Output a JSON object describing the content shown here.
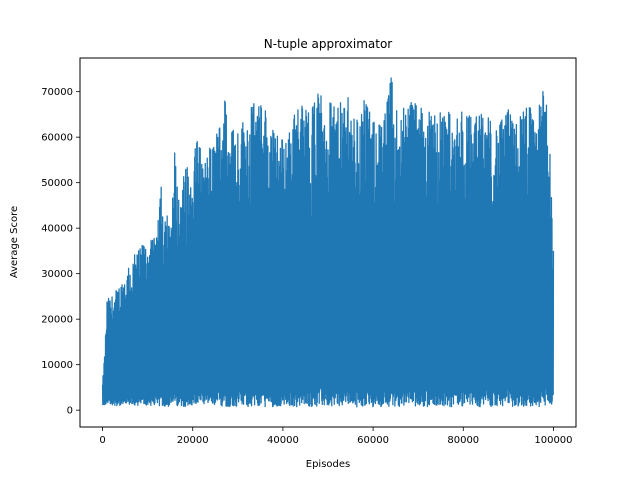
{
  "chart_data": {
    "type": "line",
    "title": "N-tuple approximator",
    "xlabel": "Episodes",
    "ylabel": "Average Score",
    "xlim": [
      -5000,
      105000
    ],
    "ylim": [
      -3700,
      77400
    ],
    "xticks": [
      0,
      20000,
      40000,
      60000,
      80000,
      100000
    ],
    "yticks": [
      0,
      10000,
      20000,
      30000,
      40000,
      50000,
      60000,
      70000
    ],
    "grid": false,
    "legend": "none",
    "series": [
      {
        "color": "#1f77b4",
        "envelope": {
          "x": [
            0,
            500,
            1000,
            2000,
            3000,
            4000,
            5000,
            6000,
            7000,
            8000,
            9000,
            10000,
            11000,
            12000,
            13000,
            14000,
            15000,
            16000,
            17000,
            18000,
            19000,
            20000,
            21000,
            22000,
            23000,
            24000,
            25000,
            26000,
            27000,
            28000,
            30000,
            32000,
            34000,
            36000,
            38000,
            40000,
            42000,
            44000,
            46000,
            48000,
            50000,
            52000,
            54000,
            56000,
            58000,
            60000,
            62000,
            64000,
            66000,
            68000,
            70000,
            72000,
            74000,
            76000,
            78000,
            80000,
            82000,
            84000,
            86000,
            88000,
            90000,
            92000,
            94000,
            96000,
            98000,
            99000,
            100000
          ],
          "upper": [
            6000,
            13000,
            24500,
            25000,
            26500,
            28000,
            30000,
            31500,
            34000,
            35000,
            36500,
            37000,
            37500,
            38000,
            49000,
            44000,
            40000,
            57000,
            46000,
            52000,
            54000,
            48000,
            65000,
            54000,
            56000,
            58000,
            60000,
            62000,
            71000,
            60000,
            63000,
            65000,
            68000,
            66000,
            62000,
            60000,
            64000,
            67000,
            65000,
            70000,
            68000,
            66000,
            70000,
            64000,
            68000,
            64000,
            62000,
            73000,
            64000,
            70000,
            66000,
            68000,
            64000,
            67000,
            63000,
            66000,
            64000,
            65000,
            64000,
            63000,
            66000,
            64000,
            68000,
            65000,
            71000,
            62000,
            36000
          ],
          "lower": [
            1000,
            1000,
            1500,
            1200,
            1000,
            900,
            1000,
            1100,
            900,
            1000,
            1000,
            900,
            1000,
            800,
            900,
            700,
            800,
            900,
            700,
            800,
            900,
            700,
            800,
            700,
            800,
            700,
            800,
            700,
            900,
            700,
            800,
            700,
            900,
            700,
            800,
            700,
            800,
            700,
            800,
            700,
            900,
            700,
            800,
            700,
            800,
            700,
            800,
            700,
            800,
            700,
            900,
            700,
            800,
            700,
            800,
            700,
            800,
            700,
            800,
            700,
            800,
            700,
            800,
            700,
            800,
            900,
            1500
          ]
        }
      }
    ]
  }
}
